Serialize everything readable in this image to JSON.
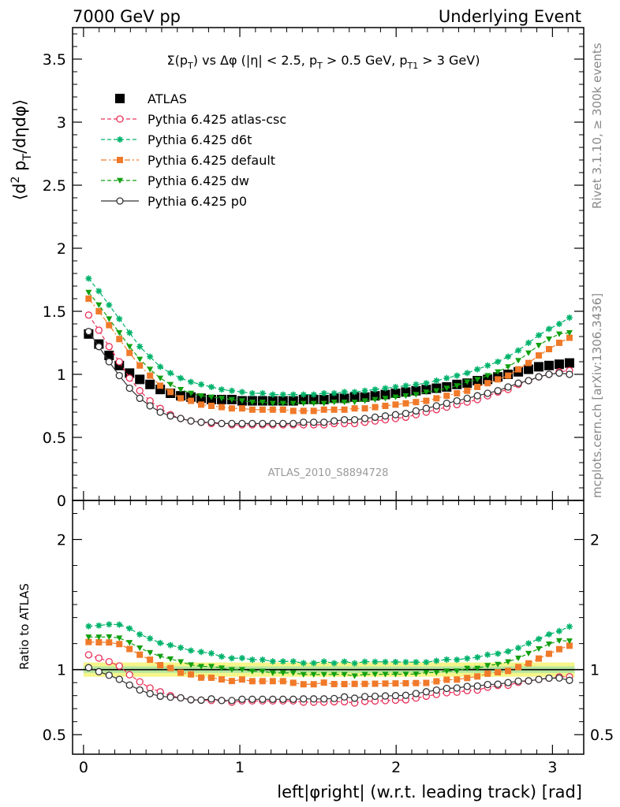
{
  "header": {
    "left": "7000 GeV pp",
    "right": "Underlying Event"
  },
  "side_labels": {
    "rivet": "Rivet 3.1.10, ≥ 300k events",
    "mcplots": "mcplots.cern.ch [arXiv:1306.3436]"
  },
  "analysis_tag": "ATLAS_2010_S8894728",
  "chart_data": [
    {
      "type": "scatter",
      "title": "Σ(p_T) vs Δφ (|η| < 2.5, p_T > 0.5 GeV, p_T1 > 3 GeV)",
      "ylabel": "⟨d² p_T/dηdφ⟩",
      "xlabel": "left|φright| (w.r.t. leading track) [rad]",
      "xlim": [
        -0.07,
        3.2
      ],
      "ylim": [
        0,
        3.75
      ],
      "yticks": [
        0,
        0.5,
        1,
        1.5,
        2,
        2.5,
        3,
        3.5
      ],
      "xticks": [
        0,
        1,
        2,
        3
      ],
      "legend_position": "top-left",
      "x": [
        0.0327,
        0.0982,
        0.1636,
        0.2291,
        0.2945,
        0.36,
        0.4254,
        0.4909,
        0.5563,
        0.6218,
        0.6872,
        0.7527,
        0.8181,
        0.8836,
        0.949,
        1.0145,
        1.0799,
        1.1454,
        1.2108,
        1.2763,
        1.3417,
        1.4072,
        1.4726,
        1.5381,
        1.6035,
        1.669,
        1.7344,
        1.7999,
        1.8653,
        1.9308,
        1.9962,
        2.0617,
        2.1271,
        2.1926,
        2.258,
        2.3235,
        2.3889,
        2.4544,
        2.5198,
        2.5853,
        2.6507,
        2.7162,
        2.7816,
        2.8471,
        2.9125,
        2.978,
        3.0434,
        3.1089
      ],
      "series": [
        {
          "name": "ATLAS",
          "color": "#000000",
          "marker": "square",
          "style": "none",
          "values": [
            1.32,
            1.24,
            1.15,
            1.07,
            1.01,
            0.96,
            0.92,
            0.88,
            0.85,
            0.83,
            0.82,
            0.81,
            0.8,
            0.8,
            0.8,
            0.79,
            0.79,
            0.79,
            0.79,
            0.79,
            0.79,
            0.8,
            0.8,
            0.8,
            0.81,
            0.81,
            0.82,
            0.82,
            0.83,
            0.84,
            0.85,
            0.86,
            0.87,
            0.88,
            0.89,
            0.9,
            0.92,
            0.93,
            0.95,
            0.96,
            0.98,
            1.0,
            1.02,
            1.04,
            1.06,
            1.07,
            1.08,
            1.09
          ]
        },
        {
          "name": "Pythia 6.425 atlas-csc",
          "color": "#e8325a",
          "marker": "circle-open",
          "style": "dashed",
          "values": [
            1.47,
            1.35,
            1.22,
            1.1,
            0.97,
            0.87,
            0.79,
            0.73,
            0.68,
            0.65,
            0.63,
            0.62,
            0.61,
            0.61,
            0.6,
            0.6,
            0.6,
            0.6,
            0.6,
            0.6,
            0.6,
            0.6,
            0.6,
            0.6,
            0.61,
            0.61,
            0.61,
            0.62,
            0.63,
            0.64,
            0.65,
            0.66,
            0.68,
            0.7,
            0.72,
            0.74,
            0.76,
            0.78,
            0.8,
            0.83,
            0.86,
            0.88,
            0.92,
            0.95,
            0.98,
            1.0,
            1.02,
            1.03
          ]
        },
        {
          "name": "Pythia 6.425 d6t",
          "color": "#00b36b",
          "marker": "asterisk",
          "style": "dashed",
          "values": [
            1.76,
            1.66,
            1.55,
            1.44,
            1.33,
            1.22,
            1.14,
            1.06,
            1.01,
            0.97,
            0.94,
            0.92,
            0.9,
            0.88,
            0.87,
            0.86,
            0.85,
            0.85,
            0.84,
            0.84,
            0.84,
            0.84,
            0.84,
            0.85,
            0.85,
            0.86,
            0.86,
            0.87,
            0.88,
            0.89,
            0.9,
            0.91,
            0.92,
            0.93,
            0.95,
            0.97,
            0.99,
            1.01,
            1.04,
            1.07,
            1.1,
            1.14,
            1.19,
            1.25,
            1.31,
            1.36,
            1.4,
            1.45
          ]
        },
        {
          "name": "Pythia 6.425 default",
          "color": "#f07a2a",
          "marker": "square",
          "style": "dashdot",
          "values": [
            1.6,
            1.5,
            1.39,
            1.28,
            1.17,
            1.07,
            0.99,
            0.91,
            0.86,
            0.81,
            0.79,
            0.76,
            0.75,
            0.74,
            0.73,
            0.73,
            0.72,
            0.72,
            0.72,
            0.72,
            0.71,
            0.71,
            0.71,
            0.72,
            0.72,
            0.72,
            0.73,
            0.73,
            0.74,
            0.75,
            0.76,
            0.77,
            0.78,
            0.79,
            0.81,
            0.83,
            0.85,
            0.87,
            0.9,
            0.93,
            0.96,
            0.99,
            1.04,
            1.09,
            1.15,
            1.2,
            1.25,
            1.29
          ]
        },
        {
          "name": "Pythia 6.425 dw",
          "color": "#11a011",
          "marker": "triangle-down",
          "style": "dashed",
          "values": [
            1.65,
            1.55,
            1.44,
            1.33,
            1.22,
            1.12,
            1.04,
            0.97,
            0.92,
            0.88,
            0.85,
            0.83,
            0.82,
            0.81,
            0.8,
            0.79,
            0.78,
            0.78,
            0.77,
            0.77,
            0.77,
            0.77,
            0.77,
            0.77,
            0.78,
            0.78,
            0.78,
            0.79,
            0.8,
            0.81,
            0.82,
            0.83,
            0.84,
            0.86,
            0.87,
            0.89,
            0.91,
            0.94,
            0.96,
            0.99,
            1.02,
            1.06,
            1.11,
            1.17,
            1.23,
            1.28,
            1.32,
            1.33
          ]
        },
        {
          "name": "Pythia 6.425 p0",
          "color": "#333333",
          "marker": "circle-open",
          "style": "solid",
          "values": [
            1.34,
            1.22,
            1.1,
            0.99,
            0.89,
            0.81,
            0.75,
            0.7,
            0.67,
            0.65,
            0.63,
            0.62,
            0.62,
            0.61,
            0.61,
            0.61,
            0.61,
            0.61,
            0.61,
            0.61,
            0.61,
            0.62,
            0.62,
            0.62,
            0.63,
            0.64,
            0.64,
            0.65,
            0.66,
            0.67,
            0.68,
            0.69,
            0.71,
            0.73,
            0.75,
            0.77,
            0.79,
            0.81,
            0.83,
            0.85,
            0.87,
            0.9,
            0.93,
            0.95,
            0.98,
            1.0,
            1.01,
            1.0
          ]
        }
      ]
    },
    {
      "type": "scatter",
      "ylabel": "Ratio to ATLAS",
      "ylim": [
        0.35,
        2.3
      ],
      "yticks": [
        0.5,
        1,
        2
      ],
      "band_inner": [
        0.975,
        1.025
      ],
      "band_outer": [
        0.945,
        1.055
      ],
      "reference": 1
    }
  ]
}
